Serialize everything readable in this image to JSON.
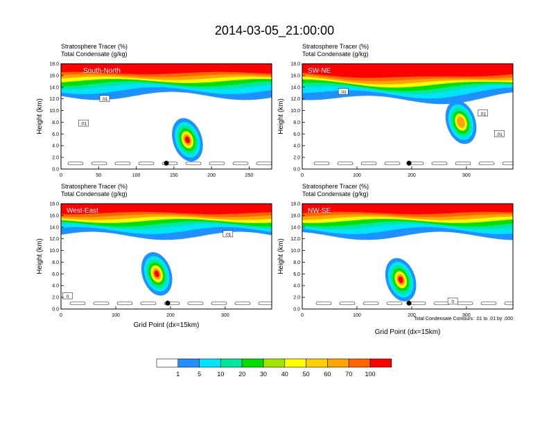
{
  "title": "2014-03-05_21:00:00",
  "panel_header": {
    "line1": "Stratosphere Tracer   (%)",
    "line2": "Total Condensate   (g/kg)"
  },
  "axis": {
    "ylabel": "Height (km)",
    "xlabel": "Grid Point (dx=15km)",
    "y_ticks": [
      "0.0",
      "2.0",
      "4.0",
      "6.0",
      "8.0",
      "10.0",
      "12.0",
      "14.0",
      "16.0",
      "18.0"
    ]
  },
  "contour_note": "Total Condensate Contours: .01 to .01 by .000",
  "colorbar": {
    "levels": [
      "1",
      "5",
      "10",
      "20",
      "30",
      "40",
      "50",
      "60",
      "70",
      "100"
    ],
    "colors": [
      "#ffffff",
      "#1e90ff",
      "#00e5ff",
      "#00e8a0",
      "#00e000",
      "#a0e600",
      "#ffff00",
      "#ffd000",
      "#ffa500",
      "#ff6600",
      "#ff0000"
    ]
  },
  "chart_data": [
    {
      "type": "heatmap",
      "label": "South-North",
      "x_ticks": [
        "0",
        "50",
        "100",
        "150",
        "200",
        "250"
      ],
      "xlim": [
        0,
        280
      ],
      "ylim": [
        0,
        18
      ],
      "marker": {
        "x": 140,
        "y": 1.0
      },
      "contour_labels": [
        {
          "text": ".01",
          "x": 58,
          "y": 12.0
        },
        {
          "text": ".01",
          "x": 30,
          "y": 7.8
        }
      ],
      "tracer_plume": {
        "x": 168,
        "y": 5.0,
        "max_percent": 100
      }
    },
    {
      "type": "heatmap",
      "label": "SW-NE",
      "x_ticks": [
        "0",
        "100",
        "200",
        "300"
      ],
      "xlim": [
        0,
        385
      ],
      "ylim": [
        0,
        18
      ],
      "marker": {
        "x": 195,
        "y": 1.0
      },
      "contour_labels": [
        {
          "text": ".01",
          "x": 75,
          "y": 13.2
        },
        {
          "text": ".01",
          "x": 330,
          "y": 9.5
        },
        {
          "text": ".01",
          "x": 360,
          "y": 6.0
        }
      ],
      "tracer_plume": {
        "x": 290,
        "y": 8.0,
        "max_percent": 70
      }
    },
    {
      "type": "heatmap",
      "label": "West-East",
      "x_ticks": [
        "0",
        "100",
        "200",
        "300"
      ],
      "xlim": [
        0,
        385
      ],
      "ylim": [
        0,
        18
      ],
      "marker": {
        "x": 195,
        "y": 1.0
      },
      "contour_labels": [
        {
          "text": "0",
          "x": 12,
          "y": 2.2
        },
        {
          "text": ".01",
          "x": 305,
          "y": 12.8
        }
      ],
      "tracer_plume": {
        "x": 175,
        "y": 6.0,
        "max_percent": 100
      }
    },
    {
      "type": "heatmap",
      "label": "NW-SE",
      "x_ticks": [
        "0",
        "100",
        "200",
        "300"
      ],
      "xlim": [
        0,
        385
      ],
      "ylim": [
        0,
        18
      ],
      "marker": {
        "x": 195,
        "y": 1.0
      },
      "contour_labels": [
        {
          "text": "0",
          "x": 275,
          "y": 1.3
        }
      ],
      "tracer_plume": {
        "x": 180,
        "y": 5.0,
        "max_percent": 100
      }
    }
  ]
}
